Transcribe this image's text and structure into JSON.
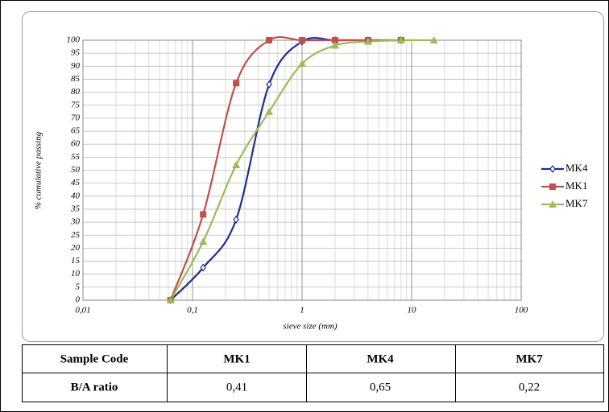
{
  "chart_data": {
    "type": "line",
    "x_label": "sieve size (mm)",
    "y_label": "% cumulative passing",
    "xscale": "log",
    "xlim": [
      0.01,
      100
    ],
    "xticks": [
      {
        "value": 0.01,
        "label": "0,01"
      },
      {
        "value": 0.1,
        "label": "0,1"
      },
      1,
      10,
      100
    ],
    "ylim": [
      0,
      100
    ],
    "yticks": [
      0,
      5,
      10,
      15,
      20,
      25,
      30,
      35,
      40,
      45,
      50,
      55,
      60,
      65,
      70,
      75,
      80,
      85,
      90,
      95,
      100
    ],
    "grid": true,
    "minor_grid": true,
    "legend": "right",
    "series": [
      {
        "name": "MK4",
        "color": "#1f2f8f",
        "marker": "diamond",
        "x": [
          0.063,
          0.125,
          0.25,
          0.5,
          1,
          2,
          4,
          8
        ],
        "values": [
          0,
          12.5,
          31,
          83,
          99.5,
          100,
          100,
          100
        ]
      },
      {
        "name": "MK1",
        "color": "#c0504d",
        "marker": "square",
        "x": [
          0.063,
          0.125,
          0.25,
          0.5,
          1,
          2,
          4,
          8
        ],
        "values": [
          0,
          33,
          83.5,
          100,
          100,
          100,
          100,
          100
        ]
      },
      {
        "name": "MK7",
        "color": "#9bbb59",
        "marker": "triangle",
        "x": [
          0.063,
          0.125,
          0.25,
          0.5,
          1,
          2,
          4,
          8,
          16
        ],
        "values": [
          0,
          22.5,
          52,
          72.5,
          91,
          98,
          99.5,
          100,
          100
        ]
      }
    ]
  },
  "table": {
    "header": [
      "Sample Code",
      "MK1",
      "MK4",
      "MK7"
    ],
    "rows": [
      [
        "B/A ratio",
        "0,41",
        "0,65",
        "0,22"
      ]
    ]
  }
}
